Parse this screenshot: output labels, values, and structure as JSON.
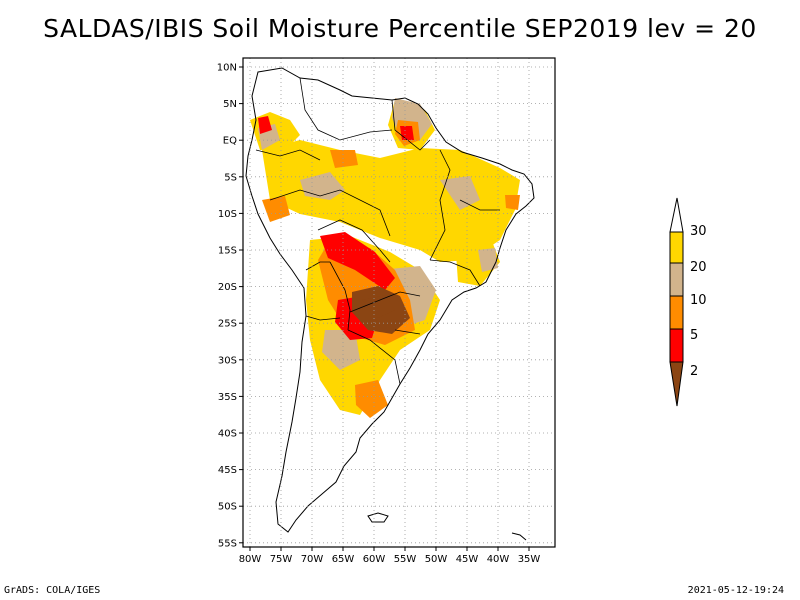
{
  "title": "SALDAS/IBIS Soil Moisture Percentile SEP2019 lev = 20",
  "footer": {
    "left": "GrADS: COLA/IGES",
    "right": "2021-05-12-19:24"
  },
  "map": {
    "lat_ticks": [
      "10N",
      "5N",
      "EQ",
      "5S",
      "10S",
      "15S",
      "20S",
      "25S",
      "30S",
      "35S",
      "40S",
      "45S",
      "50S",
      "55S"
    ],
    "lon_ticks": [
      "80W",
      "75W",
      "70W",
      "65W",
      "60W",
      "55W",
      "50W",
      "45W",
      "40W",
      "35W"
    ],
    "lat_values": [
      10,
      5,
      0,
      -5,
      -10,
      -15,
      -20,
      -25,
      -30,
      -35,
      -40,
      -45,
      -50,
      -55
    ],
    "lon_values": [
      -80,
      -75,
      -70,
      -65,
      -60,
      -55,
      -50,
      -45,
      -40,
      -35
    ],
    "region": "South America",
    "grid": "dotted"
  },
  "colorbar": {
    "labels": [
      "2",
      "5",
      "10",
      "20",
      "30"
    ],
    "colors": {
      "below_2": "#8b4513",
      "2_5": "#ff0000",
      "5_10": "#ff8c00",
      "10_20": "#d2b48c",
      "20_30": "#ffd700",
      "above_30": "#ffffff"
    }
  }
}
